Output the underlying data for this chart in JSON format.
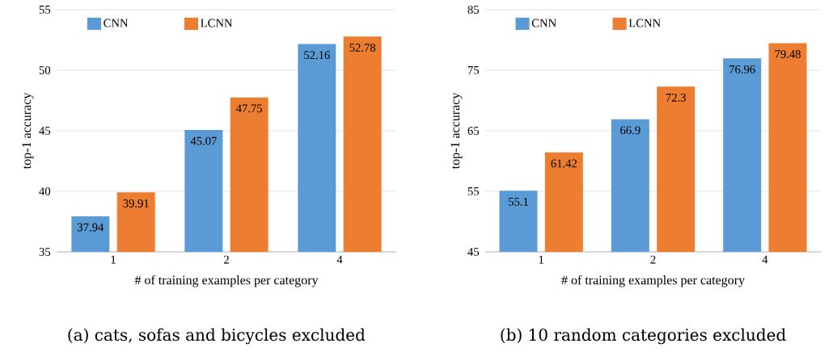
{
  "chart_data": [
    {
      "type": "bar",
      "xlabel": "# of training examples per category",
      "ylabel": "top-1 accuracy",
      "categories": [
        "1",
        "2",
        "4"
      ],
      "ylim": [
        35,
        55
      ],
      "yticks": [
        35,
        40,
        45,
        50,
        55
      ],
      "grid": "y",
      "legend": "top left",
      "data_labels": true,
      "series": [
        {
          "name": "CNN",
          "color": "#5b9bd5",
          "values": [
            37.94,
            45.07,
            52.16
          ]
        },
        {
          "name": "LCNN",
          "color": "#ed7d31",
          "values": [
            39.91,
            47.75,
            52.78
          ]
        }
      ],
      "annotations": [
        "(a) cats, sofas and bicycles excluded"
      ]
    },
    {
      "type": "bar",
      "xlabel": "# of training examples per category",
      "ylabel": "top-1 accuracy",
      "categories": [
        "1",
        "2",
        "4"
      ],
      "ylim": [
        45,
        85
      ],
      "yticks": [
        45,
        55,
        65,
        75,
        85
      ],
      "grid": "y",
      "legend": "top left",
      "data_labels": true,
      "series": [
        {
          "name": "CNN",
          "color": "#5b9bd5",
          "values": [
            55.1,
            66.9,
            76.96
          ]
        },
        {
          "name": "LCNN",
          "color": "#ed7d31",
          "values": [
            61.42,
            72.3,
            79.48
          ]
        }
      ],
      "annotations": [
        "(b) 10 random categories excluded"
      ]
    }
  ]
}
